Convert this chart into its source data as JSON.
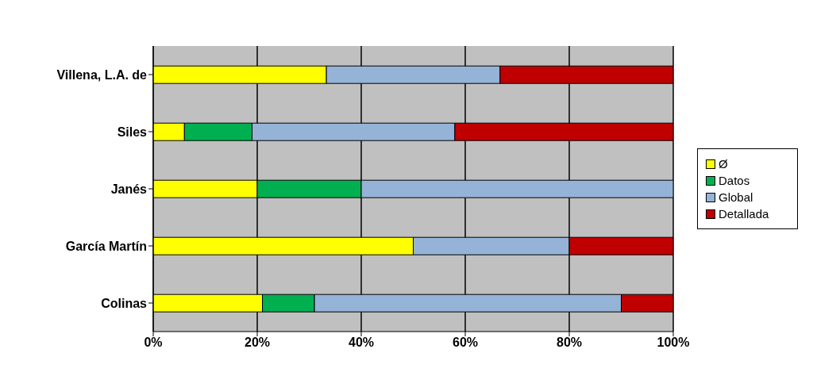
{
  "chart_data": {
    "type": "bar",
    "orientation": "horizontal",
    "stacked": true,
    "categories": [
      "Villena, L.A. de",
      "Siles",
      "Janés",
      "García Martín",
      "Colinas"
    ],
    "series": [
      {
        "name": "Ø",
        "color": "#ffff00",
        "values": [
          33.3,
          6,
          20,
          50,
          21
        ]
      },
      {
        "name": "Datos",
        "color": "#00b050",
        "values": [
          0,
          13,
          20,
          0,
          10
        ]
      },
      {
        "name": "Global",
        "color": "#95b3d7",
        "values": [
          33.4,
          39,
          60,
          30,
          59
        ]
      },
      {
        "name": "Detallada",
        "color": "#c00000",
        "values": [
          33.3,
          42,
          0,
          20,
          10
        ]
      }
    ],
    "xlim": [
      0,
      100
    ],
    "xticks": [
      {
        "value": 0,
        "label": "0%"
      },
      {
        "value": 20,
        "label": "20%"
      },
      {
        "value": 40,
        "label": "40%"
      },
      {
        "value": 60,
        "label": "60%"
      },
      {
        "value": 80,
        "label": "80%"
      },
      {
        "value": 100,
        "label": "100%"
      }
    ],
    "grid": "x",
    "legend": "right"
  }
}
